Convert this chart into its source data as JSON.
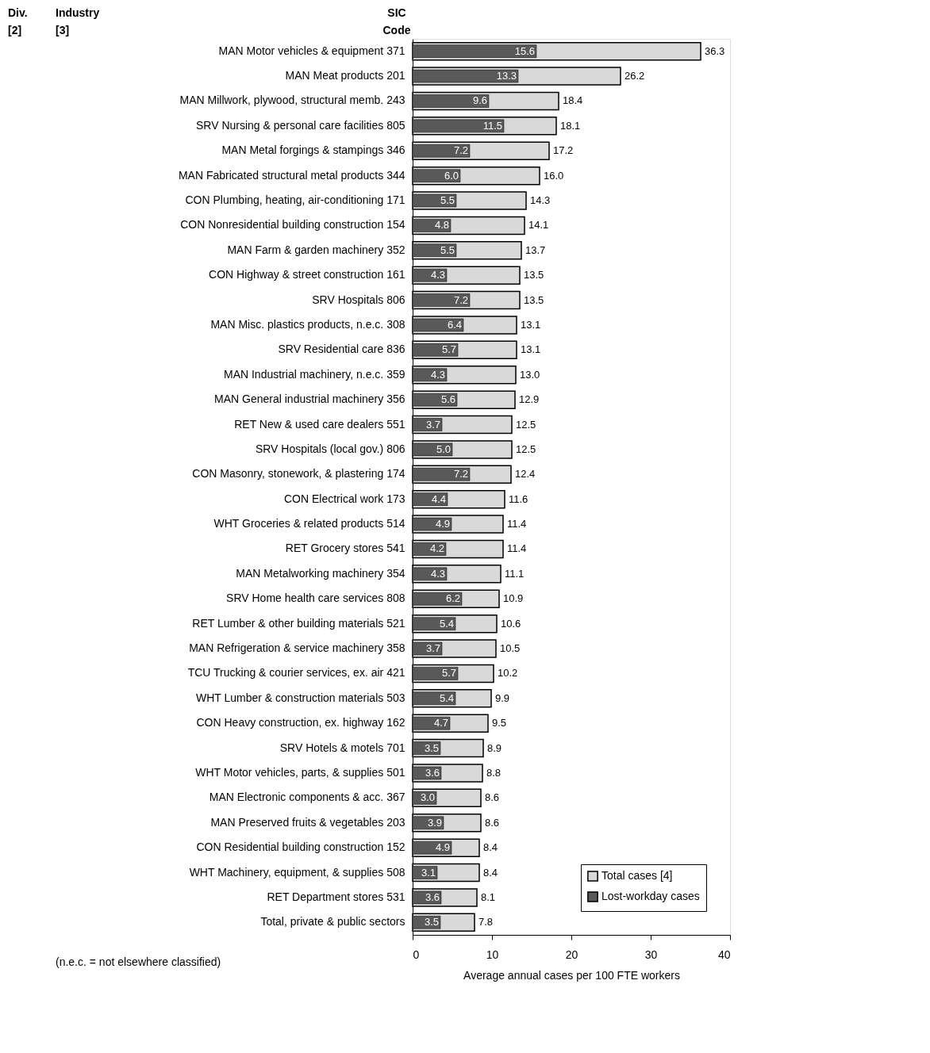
{
  "chart_data": {
    "type": "bar",
    "orientation": "horizontal",
    "xlabel": "Average annual cases per 100 FTE workers",
    "categories": [
      "MAN Motor vehicles & equipment 371",
      "MAN Meat products 201",
      "MAN Millwork, plywood, structural memb. 243",
      "SRV Nursing & personal care facilities 805",
      "MAN Metal forgings & stampings 346",
      "MAN Fabricated structural metal products 344",
      "CON Plumbing, heating, air-conditioning 171",
      "CON Nonresidential building construction 154",
      "MAN Farm & garden machinery 352",
      "CON Highway & street construction 161",
      "SRV Hospitals 806",
      "MAN Misc. plastics products, n.e.c. 308",
      "SRV Residential care 836",
      "MAN Industrial machinery, n.e.c. 359",
      "MAN General industrial machinery 356",
      "RET New & used care dealers 551",
      "SRV Hospitals (local gov.) 806",
      "CON Masonry, stonework, & plastering 174",
      "CON Electrical work 173",
      "WHT Groceries & related products 514",
      "RET Grocery stores 541",
      "MAN Metalworking machinery 354",
      "SRV Home health care services 808",
      "RET Lumber & other building materials 521",
      "MAN Refrigeration & service machinery 358",
      "TCU Trucking & courier services, ex. air 421",
      "WHT Lumber & construction materials 503",
      "CON Heavy construction, ex. highway 162",
      "SRV Hotels & motels 701",
      "WHT Motor vehicles, parts, & supplies 501",
      "MAN Electronic components & acc. 367",
      "MAN Preserved fruits & vegetables 203",
      "CON Residential building construction 152",
      "WHT Machinery, equipment, & supplies 508",
      "RET Department stores 531",
      "Total, private & public sectors"
    ],
    "series": [
      {
        "name": "Total cases [4]",
        "color": "#d9d9d9",
        "value_labels": [
          "36.3",
          "26.2",
          "18.4",
          "18.1",
          "17.2",
          "16.0",
          "14.3",
          "14.1",
          "13.7",
          "13.5",
          "13.5",
          "13.1",
          "13.1",
          "13.0",
          "12.9",
          "12.5",
          "12.5",
          "12.4",
          "11.6",
          "11.4",
          "11.4",
          "11.1",
          "10.9",
          "10.6",
          "10.5",
          "10.2",
          "9.9",
          "9.5",
          "8.9",
          "8.8",
          "8.6",
          "8.6",
          "8.4",
          "8.4",
          "8.1",
          "7.8"
        ],
        "values": [
          36.3,
          26.2,
          18.4,
          18.1,
          17.2,
          16.0,
          14.3,
          14.1,
          13.7,
          13.5,
          13.5,
          13.1,
          13.1,
          13.0,
          12.9,
          12.5,
          12.5,
          12.4,
          11.6,
          11.4,
          11.4,
          11.1,
          10.9,
          10.6,
          10.5,
          10.2,
          9.9,
          9.5,
          8.9,
          8.8,
          8.6,
          8.6,
          8.4,
          8.4,
          8.1,
          7.8
        ]
      },
      {
        "name": "Lost-workday cases",
        "color": "#595959",
        "value_labels": [
          "15.6",
          "13.3",
          "9.6",
          "11.5",
          "7.2",
          "6.0",
          "5.5",
          "4.8",
          "5.5",
          "4.3",
          "7.2",
          "6.4",
          "5.7",
          "4.3",
          "5.6",
          "3.7",
          "5.0",
          "7.2",
          "4.4",
          "4.9",
          "4.2",
          "4.3",
          "6.2",
          "5.4",
          "3.7",
          "5.7",
          "5.4",
          "4.7",
          "3.5",
          "3.6",
          "3.0",
          "3.9",
          "4.9",
          "3.1",
          "3.6",
          "3.5"
        ],
        "values": [
          15.6,
          13.3,
          9.6,
          11.5,
          7.2,
          6.0,
          5.5,
          4.8,
          5.5,
          4.3,
          7.2,
          6.4,
          5.7,
          4.3,
          5.6,
          3.7,
          5.0,
          7.2,
          4.4,
          4.9,
          4.2,
          4.3,
          6.2,
          5.4,
          3.7,
          5.7,
          5.4,
          4.7,
          3.5,
          3.6,
          3.0,
          3.9,
          4.9,
          3.1,
          3.6,
          3.5
        ]
      }
    ],
    "xlim": [
      0,
      40
    ],
    "xticks": [
      0,
      10,
      20,
      30,
      40
    ],
    "grid": false,
    "legend": "bottom right",
    "annotations": [
      "Div. [2]",
      "Industry [3]",
      "SIC Code",
      "(n.e.c. = not elsewhere classified)"
    ]
  }
}
